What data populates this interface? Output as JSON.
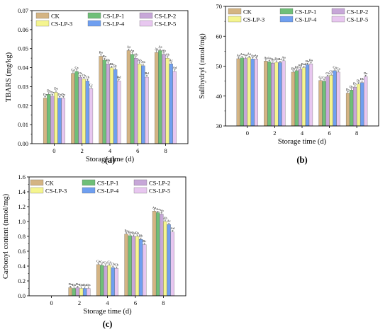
{
  "colors": {
    "CK": "#d4b483",
    "CS-LP-1": "#6fbf78",
    "CS-LP-2": "#c7a7d8",
    "CS-LP-3": "#f5f58f",
    "CS-LP-4": "#6f9ff0",
    "CS-LP-5": "#e8c7f0",
    "axis": "#000000"
  },
  "chart_data": [
    {
      "panel": "(a)",
      "type": "bar",
      "xlabel": "Storage time (d)",
      "ylabel": "TBARS (mg/kg)",
      "ylim": [
        0,
        0.07
      ],
      "yticks": [
        "0.00",
        "0.01",
        "0.02",
        "0.03",
        "0.04",
        "0.05",
        "0.06",
        "0.07"
      ],
      "legend_position": "top-left",
      "categories": [
        "0",
        "2",
        "4",
        "6",
        "8"
      ],
      "series": [
        {
          "name": "CK",
          "values": [
            0.024,
            0.037,
            0.046,
            0.049,
            0.048
          ]
        },
        {
          "name": "CS-LP-1",
          "values": [
            0.026,
            0.038,
            0.044,
            0.047,
            0.049
          ]
        },
        {
          "name": "CS-LP-2",
          "values": [
            0.025,
            0.035,
            0.042,
            0.045,
            0.047
          ]
        },
        {
          "name": "CS-LP-3",
          "values": [
            0.027,
            0.034,
            0.04,
            0.042,
            0.045
          ]
        },
        {
          "name": "CS-LP-4",
          "values": [
            0.024,
            0.033,
            0.039,
            0.041,
            0.042
          ]
        },
        {
          "name": "CS-LP-5",
          "values": [
            0.024,
            0.029,
            0.033,
            0.035,
            0.038
          ]
        }
      ],
      "bar_labels": [
        [
          "Da",
          "Da",
          "Da",
          "Da",
          "Da",
          "Da"
        ],
        [
          "Ca",
          "Ca",
          "Cb",
          "Cb",
          "Cb",
          "Cc"
        ],
        [
          "Ba",
          "Ba",
          "Bb",
          "Bb",
          "Bc",
          "Bd"
        ],
        [
          "Aa",
          "Aa",
          "Ab",
          "Ab",
          "Ab",
          "Bd"
        ],
        [
          "Aa",
          "Aa",
          "Ab",
          "Ab",
          "Ac",
          "Ad"
        ]
      ]
    },
    {
      "panel": "(b)",
      "type": "bar",
      "xlabel": "Storage time (d)",
      "ylabel": "Sulfhydryl (nmol/mg)",
      "ylim": [
        30,
        70
      ],
      "yticks": [
        "30",
        "40",
        "50",
        "60",
        "70"
      ],
      "legend_position": "top",
      "categories": [
        "0",
        "2",
        "4",
        "6",
        "8"
      ],
      "series": [
        {
          "name": "CK",
          "values": [
            52.5,
            51.7,
            48.0,
            45.2,
            41.0
          ]
        },
        {
          "name": "CS-LP-1",
          "values": [
            52.8,
            51.5,
            48.5,
            45.0,
            42.0
          ]
        },
        {
          "name": "CS-LP-2",
          "values": [
            52.6,
            51.0,
            49.0,
            46.5,
            43.0
          ]
        },
        {
          "name": "CS-LP-3",
          "values": [
            52.9,
            51.3,
            49.5,
            47.0,
            44.0
          ]
        },
        {
          "name": "CS-LP-4",
          "values": [
            52.4,
            51.2,
            50.5,
            48.5,
            44.5
          ]
        },
        {
          "name": "CS-LP-5",
          "values": [
            52.4,
            51.8,
            50.8,
            48.0,
            46.5
          ]
        }
      ],
      "bar_labels": [
        [
          "Aa",
          "Aa",
          "Aa",
          "Aa",
          "Aa",
          "Aa"
        ],
        [
          "Aa",
          "Aa",
          "Ba",
          "Ba",
          "Ba",
          "Aa"
        ],
        [
          "Bb",
          "Bb",
          "Bb",
          "Bab",
          "Ba",
          "Ba"
        ],
        [
          "Cc",
          "Cc",
          "Cb",
          "Cb",
          "Ca",
          "Ca"
        ],
        [
          "Dc",
          "Dc",
          "Dc",
          "Dc",
          "Db",
          "Da"
        ]
      ]
    },
    {
      "panel": "(c)",
      "type": "bar",
      "xlabel": "Storage time (d)",
      "ylabel": "Carbonyl content (nmol/mg)",
      "ylim": [
        0,
        1.6
      ],
      "yticks": [
        "0.0",
        "0.2",
        "0.4",
        "0.6",
        "0.8",
        "1.0",
        "1.2",
        "1.4",
        "1.6"
      ],
      "legend_position": "top",
      "categories": [
        "0",
        "2",
        "4",
        "6",
        "8"
      ],
      "series": [
        {
          "name": "CK",
          "values": [
            0.0,
            0.11,
            0.42,
            0.83,
            1.14
          ]
        },
        {
          "name": "CS-LP-1",
          "values": [
            0.0,
            0.1,
            0.41,
            0.81,
            1.12
          ]
        },
        {
          "name": "CS-LP-2",
          "values": [
            0.0,
            0.11,
            0.4,
            0.8,
            1.1
          ]
        },
        {
          "name": "CS-LP-3",
          "values": [
            0.0,
            0.1,
            0.41,
            0.8,
            1.0
          ]
        },
        {
          "name": "CS-LP-4",
          "values": [
            0.0,
            0.1,
            0.38,
            0.76,
            0.96
          ]
        },
        {
          "name": "CS-LP-5",
          "values": [
            0.0,
            0.1,
            0.37,
            0.69,
            0.86
          ]
        }
      ],
      "bar_labels": [
        [
          "",
          "",
          "",
          "",
          "",
          ""
        ],
        [
          "Da",
          "Da",
          "Da",
          "Da",
          "Da",
          "Da"
        ],
        [
          "Ca",
          "Ca",
          "Ca",
          "Ca",
          "Cb",
          "Cb"
        ],
        [
          "Ba",
          "Ba",
          "Ba",
          "Ba",
          "Bb",
          "Bc"
        ],
        [
          "Aa",
          "Aa",
          "Ab",
          "Ab",
          "Ac",
          "Ad"
        ]
      ]
    }
  ]
}
